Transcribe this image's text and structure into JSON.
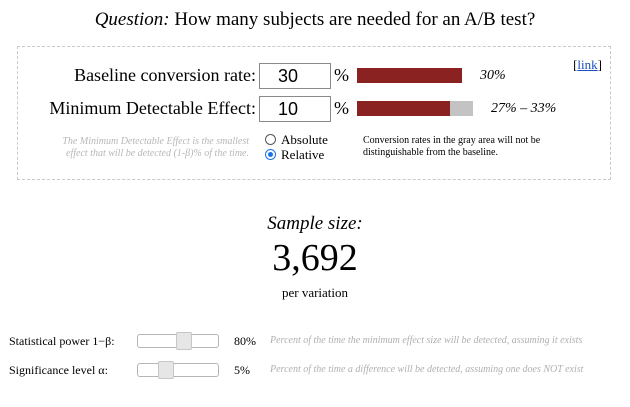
{
  "header": {
    "question_label": "Question:",
    "question_text": " How many subjects are needed for an A/B test?"
  },
  "panel": {
    "link_prefix": "[",
    "link_text": "link",
    "link_suffix": "]",
    "baseline": {
      "label": "Baseline conversion rate:",
      "value": "30",
      "unit": "%",
      "bar_text": "30%",
      "bar_fraction": 0.3
    },
    "mde": {
      "label": "Minimum Detectable Effect:",
      "value": "10",
      "unit": "%",
      "bar_text": "27% – 33%",
      "range_low": 0.27,
      "range_high": 0.33
    },
    "help_text": "The Minimum Detectable Effect is the smallest effect that will be detected (1-β)% of the time.",
    "radios": [
      {
        "label": "Absolute",
        "checked": false
      },
      {
        "label": "Relative",
        "checked": true
      }
    ],
    "note": "Conversion rates in the gray area will not be distinguishable from the baseline."
  },
  "result": {
    "label": "Sample size:",
    "value": "3,692",
    "unit": "per variation"
  },
  "sliders": [
    {
      "label": "Statistical power 1−β:",
      "value": "80%",
      "level": 0.8,
      "description": "Percent of the time the minimum effect size will be detected, assuming it exists"
    },
    {
      "label": "Significance level α:",
      "value": "5%",
      "level": 0.05,
      "description": "Percent of the time a difference will be detected, assuming one does NOT exist"
    }
  ],
  "colors": {
    "bar_red": "#8b2222",
    "bar_gray": "#c3c3c3",
    "radio_accent": "#1a73e8",
    "link": "#1a4fbf"
  }
}
